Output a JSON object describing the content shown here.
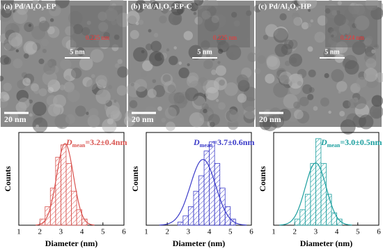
{
  "chart_data": [
    {
      "type": "histogram",
      "xlabel": "Diameter (nm)",
      "ylabel": "Counts",
      "color": "#d9534f",
      "bins": [
        2.0,
        2.25,
        2.5,
        2.75,
        3.0,
        3.25,
        3.5,
        3.75,
        4.0,
        4.25
      ],
      "values": [
        2,
        6,
        12,
        22,
        26,
        20,
        11,
        5,
        2
      ],
      "mean": 3.2,
      "sd": 0.4,
      "annotation": {
        "symbol": "D",
        "subscript": "mean",
        "text": "=3.2±0.4nm"
      },
      "xlim": [
        1,
        6
      ],
      "xticks": [
        1,
        2,
        3,
        4,
        5,
        6
      ],
      "ylim": [
        0,
        30
      ]
    },
    {
      "type": "histogram",
      "xlabel": "Diameter (nm)",
      "ylabel": "Counts",
      "color": "#3a3ac8",
      "bins": [
        2.5,
        2.75,
        3.0,
        3.25,
        3.5,
        3.75,
        4.0,
        4.25,
        4.5,
        4.75,
        5.0,
        5.25
      ],
      "values": [
        1,
        3,
        6,
        11,
        16,
        24,
        27,
        20,
        12,
        6,
        2
      ],
      "mean": 3.7,
      "sd": 0.6,
      "annotation": {
        "symbol": "D",
        "subscript": "mean",
        "text": "=3.7±0.6nm"
      },
      "xlim": [
        1,
        6
      ],
      "xticks": [
        1,
        2,
        3,
        4,
        5,
        6
      ],
      "ylim": [
        0,
        30
      ]
    },
    {
      "type": "histogram",
      "xlabel": "Diameter (nm)",
      "ylabel": "Counts",
      "color": "#1a9e9e",
      "bins": [
        2.0,
        2.25,
        2.5,
        2.75,
        3.0,
        3.25,
        3.5,
        3.75,
        4.0,
        4.25
      ],
      "values": [
        2,
        5,
        10,
        20,
        28,
        20,
        10,
        4,
        2
      ],
      "mean": 3.0,
      "sd": 0.5,
      "annotation": {
        "symbol": "D",
        "subscript": "mean",
        "text": "=3.0±0.5nm"
      },
      "xlim": [
        1,
        6
      ],
      "xticks": [
        1,
        2,
        3,
        4,
        5,
        6
      ],
      "ylim": [
        0,
        30
      ]
    }
  ],
  "images": [
    {
      "label": "(a) Pd/Al₂O₃-EP",
      "scale_small": "5 nm",
      "scale_large": "20 nm",
      "lattice": "0.225 nm"
    },
    {
      "label": "(b) Pd/Al₂O₃-EP-C",
      "scale_small": "5 nm",
      "scale_large": "20 nm",
      "lattice": "0.225 nm"
    },
    {
      "label": "(c) Pd/Al₂O₃-HP",
      "scale_small": "5 nm",
      "scale_large": "20 nm",
      "lattice": "0.224 nm"
    }
  ]
}
